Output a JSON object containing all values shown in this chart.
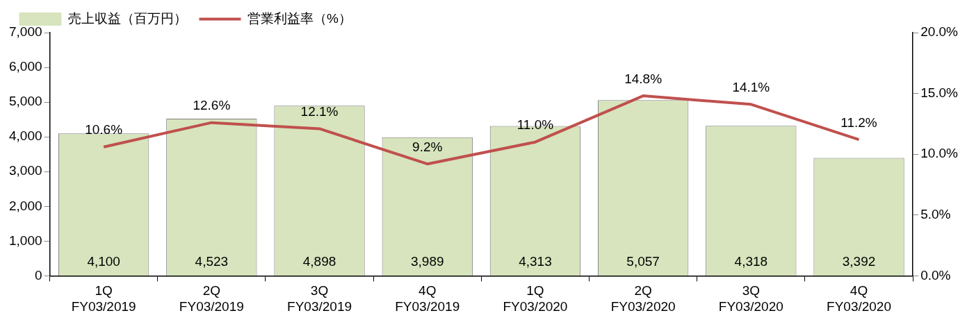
{
  "chart_data": {
    "type": "bar",
    "categories": [
      "1Q\nFY03/2019",
      "2Q\nFY03/2019",
      "3Q\nFY03/2019",
      "4Q\nFY03/2019",
      "1Q\nFY03/2020",
      "2Q\nFY03/2020",
      "3Q\nFY03/2020",
      "4Q\nFY03/2020"
    ],
    "series": [
      {
        "name": "売上収益（百万円）",
        "color": "#d7e4bd",
        "values": [
          4100,
          4523,
          4898,
          3989,
          4313,
          5057,
          4318,
          3392
        ],
        "value_labels": [
          "4,100",
          "4,523",
          "4,898",
          "3,989",
          "4,313",
          "5,057",
          "4,318",
          "3,392"
        ]
      },
      {
        "name": "営業利益率（%）",
        "type": "line",
        "axis": "y2",
        "color": "#c0504d",
        "values": [
          10.6,
          12.6,
          12.1,
          9.2,
          11.0,
          14.8,
          14.1,
          11.2
        ],
        "value_labels": [
          "10.6%",
          "12.6%",
          "12.1%",
          "9.2%",
          "11.0%",
          "14.8%",
          "14.1%",
          "11.2%"
        ]
      }
    ],
    "ylim": [
      0,
      7000
    ],
    "yticks": [
      {
        "value": 0,
        "label": "0"
      },
      {
        "value": 1000,
        "label": "1,000"
      },
      {
        "value": 2000,
        "label": "2,000"
      },
      {
        "value": 3000,
        "label": "3,000"
      },
      {
        "value": 4000,
        "label": "4,000"
      },
      {
        "value": 5000,
        "label": "5,000"
      },
      {
        "value": 6000,
        "label": "6,000"
      },
      {
        "value": 7000,
        "label": "7,000"
      }
    ],
    "y2lim": [
      0,
      20
    ],
    "y2ticks": [
      {
        "value": 0,
        "label": "0.0%"
      },
      {
        "value": 5,
        "label": "5.0%"
      },
      {
        "value": 10,
        "label": "10.0%"
      },
      {
        "value": 15,
        "label": "15.0%"
      },
      {
        "value": 20,
        "label": "20.0%"
      }
    ],
    "grid": false,
    "legend": "top left",
    "marker": "none",
    "line_style": "solid"
  }
}
